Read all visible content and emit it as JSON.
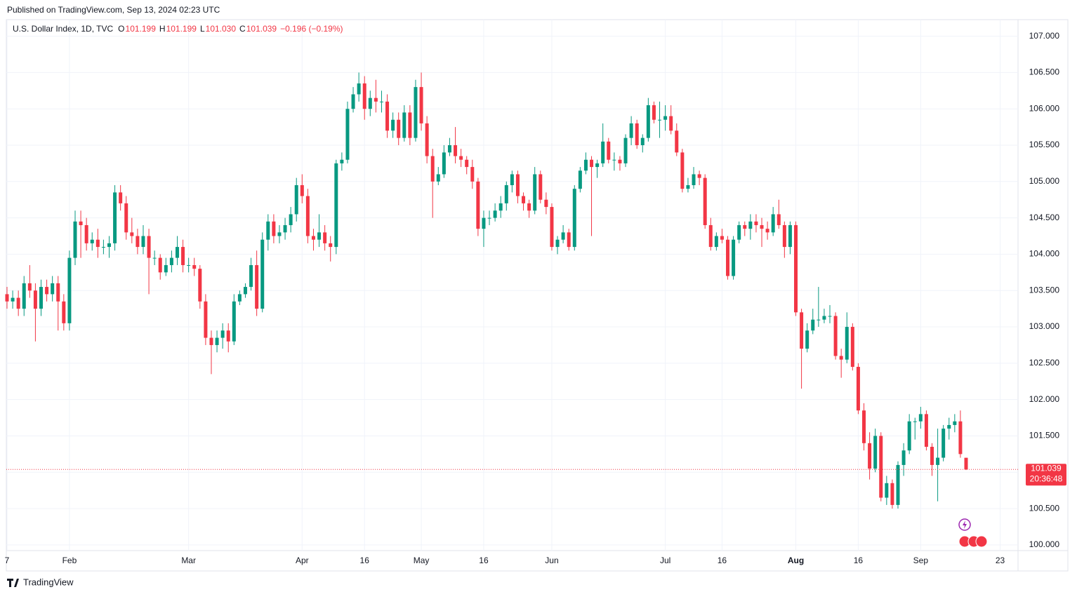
{
  "header": {
    "published": "Published on TradingView.com, Sep 13, 2024 02:23 UTC",
    "symbol": "U.S. Dollar Index, 1D, TVC",
    "ohlc": [
      {
        "label": "O",
        "value": "101.199"
      },
      {
        "label": "H",
        "value": "101.199"
      },
      {
        "label": "L",
        "value": "101.030"
      },
      {
        "label": "C",
        "value": "101.039"
      }
    ],
    "change": "−0.196 (−0.19%)"
  },
  "chart_data": {
    "type": "candlestick",
    "up_color": "#089981",
    "down_color": "#f23645",
    "grid": true,
    "ylim": [
      99.97,
      107.16
    ],
    "yticks": [
      {
        "value": 100,
        "label": "100.000"
      },
      {
        "value": 100.5,
        "label": "100.500"
      },
      {
        "value": 101,
        "label": "101.000"
      },
      {
        "value": 101.5,
        "label": "101.500"
      },
      {
        "value": 102,
        "label": "102.000"
      },
      {
        "value": 102.5,
        "label": "102.500"
      },
      {
        "value": 103,
        "label": "103.000"
      },
      {
        "value": 103.5,
        "label": "103.500"
      },
      {
        "value": 104,
        "label": "104.000"
      },
      {
        "value": 104.5,
        "label": "104.500"
      },
      {
        "value": 105,
        "label": "105.000"
      },
      {
        "value": 105.5,
        "label": "105.500"
      },
      {
        "value": 106,
        "label": "106.000"
      },
      {
        "value": 106.5,
        "label": "106.500"
      },
      {
        "value": 107,
        "label": "107.000"
      }
    ],
    "xticks": [
      {
        "value": 0,
        "label": "7"
      },
      {
        "value": 11,
        "label": "Feb"
      },
      {
        "value": 32,
        "label": "Mar"
      },
      {
        "value": 52,
        "label": "Apr"
      },
      {
        "value": 63,
        "label": "16"
      },
      {
        "value": 73,
        "label": "May"
      },
      {
        "value": 84,
        "label": "16"
      },
      {
        "value": 96,
        "label": "Jun"
      },
      {
        "value": 116,
        "label": "Jul"
      },
      {
        "value": 126,
        "label": "16"
      },
      {
        "value": 139,
        "label": "Aug",
        "bold": true
      },
      {
        "value": 150,
        "label": "16"
      },
      {
        "value": 161,
        "label": "Sep"
      },
      {
        "value": 175,
        "label": "23"
      }
    ],
    "candles": [
      [
        103.45,
        103.55,
        103.25,
        103.35
      ],
      [
        103.35,
        103.5,
        103.25,
        103.4
      ],
      [
        103.4,
        103.5,
        103.15,
        103.25
      ],
      [
        103.25,
        103.7,
        103.15,
        103.6
      ],
      [
        103.6,
        103.85,
        103.4,
        103.5
      ],
      [
        103.5,
        103.6,
        102.8,
        103.25
      ],
      [
        103.25,
        103.65,
        103.15,
        103.55
      ],
      [
        103.55,
        103.65,
        103.35,
        103.45
      ],
      [
        103.45,
        103.7,
        103.35,
        103.6
      ],
      [
        103.6,
        103.7,
        102.95,
        103.35
      ],
      [
        103.35,
        103.45,
        102.95,
        103.05
      ],
      [
        103.05,
        104.05,
        102.95,
        103.95
      ],
      [
        103.95,
        104.6,
        103.85,
        104.45
      ],
      [
        104.45,
        104.6,
        103.95,
        104.4
      ],
      [
        104.4,
        104.5,
        104.05,
        104.15
      ],
      [
        104.15,
        104.3,
        104.05,
        104.2
      ],
      [
        104.2,
        104.35,
        103.95,
        104.1
      ],
      [
        104.1,
        104.2,
        104.0,
        104.1
      ],
      [
        104.1,
        104.25,
        103.95,
        104.15
      ],
      [
        104.15,
        104.95,
        104.05,
        104.85
      ],
      [
        104.85,
        104.95,
        104.6,
        104.7
      ],
      [
        104.7,
        104.8,
        104.2,
        104.3
      ],
      [
        104.3,
        104.5,
        104.15,
        104.25
      ],
      [
        104.25,
        104.35,
        104.0,
        104.1
      ],
      [
        104.1,
        104.4,
        104.0,
        104.25
      ],
      [
        104.25,
        104.35,
        103.45,
        103.95
      ],
      [
        103.95,
        104.05,
        103.85,
        103.95
      ],
      [
        103.95,
        104.0,
        103.65,
        103.75
      ],
      [
        103.75,
        103.95,
        103.7,
        103.85
      ],
      [
        103.85,
        104.05,
        103.75,
        103.95
      ],
      [
        103.95,
        104.25,
        103.85,
        104.1
      ],
      [
        104.1,
        104.2,
        103.75,
        103.85
      ],
      [
        103.85,
        103.95,
        103.75,
        103.85
      ],
      [
        103.85,
        103.95,
        103.7,
        103.8
      ],
      [
        103.8,
        103.85,
        103.25,
        103.35
      ],
      [
        103.35,
        103.45,
        102.75,
        102.85
      ],
      [
        102.85,
        102.95,
        102.35,
        102.75
      ],
      [
        102.75,
        102.95,
        102.65,
        102.85
      ],
      [
        102.85,
        103.05,
        102.7,
        102.95
      ],
      [
        102.95,
        103.05,
        102.65,
        102.8
      ],
      [
        102.8,
        103.45,
        102.75,
        103.35
      ],
      [
        103.35,
        103.5,
        103.3,
        103.45
      ],
      [
        103.45,
        103.6,
        103.4,
        103.55
      ],
      [
        103.55,
        103.95,
        103.5,
        103.85
      ],
      [
        103.85,
        104.05,
        103.15,
        103.25
      ],
      [
        103.25,
        104.3,
        103.2,
        104.2
      ],
      [
        104.2,
        104.55,
        104.05,
        104.45
      ],
      [
        104.45,
        104.55,
        104.15,
        104.25
      ],
      [
        104.25,
        104.4,
        104.15,
        104.3
      ],
      [
        104.3,
        104.5,
        104.2,
        104.4
      ],
      [
        104.4,
        104.65,
        104.3,
        104.55
      ],
      [
        104.55,
        105.05,
        104.45,
        104.95
      ],
      [
        104.95,
        105.1,
        104.7,
        104.8
      ],
      [
        104.8,
        104.9,
        104.15,
        104.25
      ],
      [
        104.25,
        104.35,
        104.05,
        104.2
      ],
      [
        104.2,
        104.55,
        104.1,
        104.3
      ],
      [
        104.3,
        104.4,
        104.05,
        104.15
      ],
      [
        104.15,
        104.25,
        103.9,
        104.1
      ],
      [
        104.1,
        105.3,
        104.0,
        105.25
      ],
      [
        105.25,
        105.4,
        105.15,
        105.3
      ],
      [
        105.3,
        106.1,
        105.25,
        106.0
      ],
      [
        106.0,
        106.3,
        105.95,
        106.2
      ],
      [
        106.2,
        106.5,
        106.1,
        106.35
      ],
      [
        106.35,
        106.45,
        105.85,
        106.0
      ],
      [
        106.0,
        106.25,
        105.9,
        106.15
      ],
      [
        106.15,
        106.4,
        105.95,
        106.1
      ],
      [
        106.1,
        106.25,
        105.95,
        106.1
      ],
      [
        106.1,
        106.2,
        105.6,
        105.7
      ],
      [
        105.7,
        105.95,
        105.6,
        105.85
      ],
      [
        105.85,
        105.95,
        105.5,
        105.6
      ],
      [
        105.6,
        106.05,
        105.55,
        105.95
      ],
      [
        105.95,
        106.05,
        105.5,
        105.6
      ],
      [
        105.6,
        106.4,
        105.55,
        106.3
      ],
      [
        106.3,
        106.5,
        105.7,
        105.8
      ],
      [
        105.8,
        105.9,
        105.25,
        105.35
      ],
      [
        105.35,
        105.45,
        104.5,
        105.0
      ],
      [
        105.0,
        105.2,
        104.95,
        105.1
      ],
      [
        105.1,
        105.5,
        105.05,
        105.4
      ],
      [
        105.4,
        105.6,
        105.35,
        105.5
      ],
      [
        105.5,
        105.75,
        105.25,
        105.35
      ],
      [
        105.35,
        105.45,
        105.2,
        105.3
      ],
      [
        105.3,
        105.35,
        105.1,
        105.2
      ],
      [
        105.2,
        105.3,
        104.9,
        105.0
      ],
      [
        105.0,
        105.05,
        104.25,
        104.35
      ],
      [
        104.35,
        104.6,
        104.1,
        104.5
      ],
      [
        104.5,
        104.6,
        104.4,
        104.5
      ],
      [
        104.5,
        104.7,
        104.45,
        104.6
      ],
      [
        104.6,
        104.8,
        104.5,
        104.7
      ],
      [
        104.7,
        105.0,
        104.6,
        104.95
      ],
      [
        104.95,
        105.15,
        104.85,
        105.1
      ],
      [
        105.1,
        105.15,
        104.7,
        104.8
      ],
      [
        104.8,
        104.85,
        104.6,
        104.7
      ],
      [
        104.7,
        104.75,
        104.5,
        104.6
      ],
      [
        104.6,
        105.2,
        104.55,
        105.1
      ],
      [
        105.1,
        105.15,
        104.7,
        104.75
      ],
      [
        104.75,
        104.85,
        104.55,
        104.65
      ],
      [
        104.65,
        104.7,
        104.05,
        104.1
      ],
      [
        104.1,
        104.25,
        104.0,
        104.2
      ],
      [
        104.2,
        104.4,
        104.15,
        104.3
      ],
      [
        104.3,
        104.35,
        104.05,
        104.1
      ],
      [
        104.1,
        104.95,
        104.05,
        104.9
      ],
      [
        104.9,
        105.2,
        104.85,
        105.15
      ],
      [
        105.15,
        105.4,
        105.1,
        105.3
      ],
      [
        105.3,
        105.35,
        104.25,
        105.2
      ],
      [
        105.2,
        105.3,
        105.05,
        105.25
      ],
      [
        105.25,
        105.8,
        105.2,
        105.55
      ],
      [
        105.55,
        105.6,
        105.25,
        105.3
      ],
      [
        105.3,
        105.4,
        105.15,
        105.3
      ],
      [
        105.3,
        105.35,
        105.15,
        105.25
      ],
      [
        105.25,
        105.65,
        105.2,
        105.6
      ],
      [
        105.6,
        105.9,
        105.5,
        105.8
      ],
      [
        105.8,
        105.85,
        105.45,
        105.5
      ],
      [
        105.5,
        105.65,
        105.4,
        105.6
      ],
      [
        105.6,
        106.15,
        105.55,
        106.05
      ],
      [
        106.05,
        106.1,
        105.8,
        105.85
      ],
      [
        105.85,
        106.1,
        105.6,
        105.85
      ],
      [
        105.85,
        106.05,
        105.7,
        105.9
      ],
      [
        105.9,
        106.05,
        105.65,
        105.7
      ],
      [
        105.7,
        105.8,
        105.35,
        105.4
      ],
      [
        105.4,
        105.45,
        104.85,
        104.9
      ],
      [
        104.9,
        105.05,
        104.85,
        104.95
      ],
      [
        104.95,
        105.2,
        104.9,
        105.1
      ],
      [
        105.1,
        105.15,
        104.95,
        105.05
      ],
      [
        105.05,
        105.1,
        104.35,
        104.4
      ],
      [
        104.4,
        104.5,
        104.05,
        104.1
      ],
      [
        104.1,
        104.3,
        104.05,
        104.25
      ],
      [
        104.25,
        104.35,
        104.15,
        104.2
      ],
      [
        104.2,
        104.25,
        103.65,
        103.7
      ],
      [
        103.7,
        104.25,
        103.65,
        104.2
      ],
      [
        104.2,
        104.45,
        104.15,
        104.4
      ],
      [
        104.4,
        104.45,
        104.25,
        104.35
      ],
      [
        104.35,
        104.55,
        104.2,
        104.45
      ],
      [
        104.45,
        104.55,
        104.3,
        104.4
      ],
      [
        104.4,
        104.5,
        104.1,
        104.35
      ],
      [
        104.35,
        104.45,
        104.2,
        104.3
      ],
      [
        104.3,
        104.65,
        104.25,
        104.55
      ],
      [
        104.55,
        104.75,
        104.35,
        104.4
      ],
      [
        104.4,
        104.45,
        103.95,
        104.1
      ],
      [
        104.1,
        104.45,
        104.0,
        104.4
      ],
      [
        104.4,
        104.45,
        103.15,
        103.2
      ],
      [
        103.2,
        103.25,
        102.15,
        102.7
      ],
      [
        102.7,
        103.05,
        102.65,
        102.95
      ],
      [
        102.95,
        103.25,
        102.9,
        103.1
      ],
      [
        103.1,
        103.55,
        103.0,
        103.1
      ],
      [
        103.1,
        103.25,
        103.05,
        103.15
      ],
      [
        103.15,
        103.3,
        103.05,
        103.15
      ],
      [
        103.15,
        103.2,
        102.55,
        102.6
      ],
      [
        102.6,
        102.7,
        102.3,
        102.55
      ],
      [
        102.55,
        103.2,
        102.5,
        103.0
      ],
      [
        103.0,
        103.05,
        102.4,
        102.45
      ],
      [
        102.45,
        102.5,
        101.8,
        101.85
      ],
      [
        101.85,
        101.95,
        101.3,
        101.4
      ],
      [
        101.4,
        101.55,
        100.9,
        101.05
      ],
      [
        101.05,
        101.6,
        101.0,
        101.5
      ],
      [
        101.5,
        101.55,
        100.6,
        100.65
      ],
      [
        100.65,
        100.95,
        100.55,
        100.85
      ],
      [
        100.85,
        100.9,
        100.5,
        100.55
      ],
      [
        100.55,
        101.15,
        100.5,
        101.1
      ],
      [
        101.1,
        101.4,
        100.95,
        101.3
      ],
      [
        101.3,
        101.8,
        101.25,
        101.7
      ],
      [
        101.7,
        101.75,
        101.45,
        101.7
      ],
      [
        101.7,
        101.9,
        101.6,
        101.8
      ],
      [
        101.8,
        101.85,
        101.3,
        101.35
      ],
      [
        101.35,
        101.4,
        100.95,
        101.1
      ],
      [
        101.1,
        101.6,
        100.6,
        101.2
      ],
      [
        101.2,
        101.65,
        101.15,
        101.6
      ],
      [
        101.6,
        101.75,
        101.45,
        101.65
      ],
      [
        101.65,
        101.8,
        101.55,
        101.7
      ],
      [
        101.7,
        101.85,
        101.2,
        101.25
      ],
      [
        101.199,
        101.199,
        101.03,
        101.039
      ]
    ],
    "last_price": {
      "label": "101.039",
      "countdown": "20:36:48"
    }
  },
  "footer": {
    "brand": "TradingView"
  }
}
